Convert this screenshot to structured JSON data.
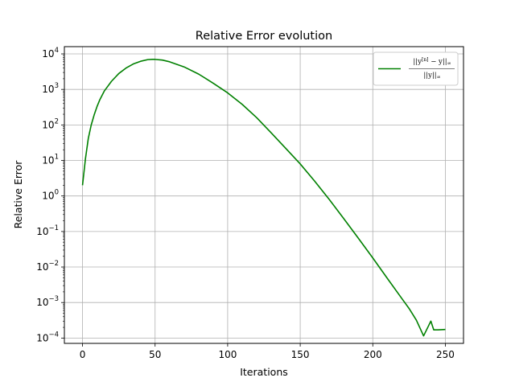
{
  "chart_data": {
    "type": "line",
    "title": "Relative Error evolution",
    "xlabel": "Iterations",
    "ylabel": "Relative Error",
    "yscale": "log",
    "xlim": [
      -12.5,
      262.5
    ],
    "ylim": [
      7.08e-05,
      16000
    ],
    "grid": true,
    "legend_position": "top-right",
    "x_ticks": [
      0,
      50,
      100,
      150,
      200,
      250
    ],
    "y_ticks": [
      {
        "base": "10",
        "exp": "4"
      },
      {
        "base": "10",
        "exp": "3"
      },
      {
        "base": "10",
        "exp": "2"
      },
      {
        "base": "10",
        "exp": "1"
      },
      {
        "base": "10",
        "exp": "0"
      },
      {
        "base": "10",
        "exp": "−1"
      },
      {
        "base": "10",
        "exp": "−2"
      },
      {
        "base": "10",
        "exp": "−3"
      },
      {
        "base": "10",
        "exp": "−4"
      }
    ],
    "series": [
      {
        "name": "||y^{[n]} − y||∞ / ||y||∞",
        "legend_numerator_main": "||y",
        "legend_numerator_sup": "[n]",
        "legend_numerator_rest": " − y||",
        "legend_numerator_sub": "∞",
        "legend_denominator_main": "||y||",
        "legend_denominator_sub": "∞",
        "color": "#008000",
        "x": [
          0,
          2,
          4,
          6,
          8,
          10,
          12,
          15,
          20,
          25,
          30,
          35,
          40,
          45,
          48,
          50,
          55,
          60,
          70,
          80,
          90,
          100,
          110,
          120,
          130,
          140,
          150,
          160,
          170,
          180,
          190,
          200,
          210,
          220,
          225,
          230,
          235,
          240,
          242,
          245,
          250
        ],
        "y": [
          2,
          11,
          42,
          100,
          190,
          330,
          520,
          900,
          1700,
          2800,
          4000,
          5200,
          6200,
          6900,
          7000,
          7000,
          6700,
          6000,
          4300,
          2700,
          1500,
          800,
          380,
          160,
          60,
          22,
          8,
          2.6,
          0.8,
          0.23,
          0.065,
          0.018,
          0.0048,
          0.0013,
          0.00068,
          0.00032,
          0.000115,
          0.0003,
          0.00017,
          0.00017,
          0.000175
        ]
      }
    ]
  }
}
